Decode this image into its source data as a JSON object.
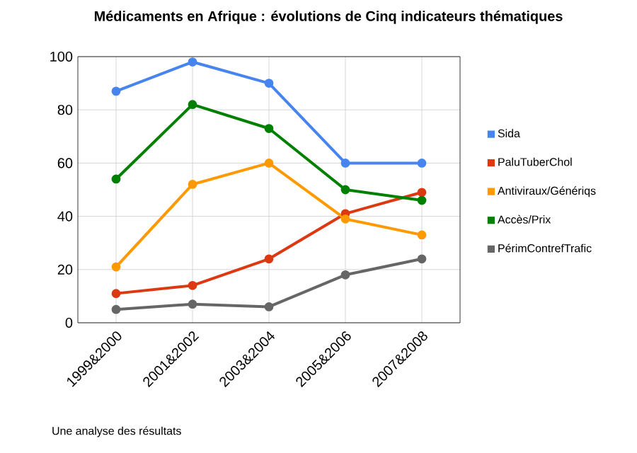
{
  "chart_data": {
    "type": "line",
    "title": "Médicaments en Afrique : évolutions de Cinq indicateurs thématiques",
    "categories": [
      "1999&2000",
      "2001&2002",
      "2003&2004",
      "2005&2006",
      "2007&2008"
    ],
    "series": [
      {
        "name": "Sida",
        "color": "#4684ee",
        "values": [
          87,
          98,
          90,
          60,
          60
        ]
      },
      {
        "name": "PaluTuberChol",
        "color": "#dc3912",
        "values": [
          11,
          14,
          24,
          41,
          49
        ]
      },
      {
        "name": "Antiviraux/Génériqs",
        "color": "#ff9900",
        "values": [
          21,
          52,
          60,
          39,
          33
        ]
      },
      {
        "name": "Accès/Prix",
        "color": "#008000",
        "values": [
          54,
          82,
          73,
          50,
          46
        ]
      },
      {
        "name": "PérimContrefTrafic",
        "color": "#666666",
        "values": [
          5,
          7,
          6,
          18,
          24
        ]
      }
    ],
    "ylim": [
      0,
      100
    ],
    "yticks": [
      0,
      20,
      40,
      60,
      80,
      100
    ],
    "grid": true,
    "legend": "right",
    "marker": "circle",
    "annotations": [
      "Une analyse des résultats"
    ]
  }
}
